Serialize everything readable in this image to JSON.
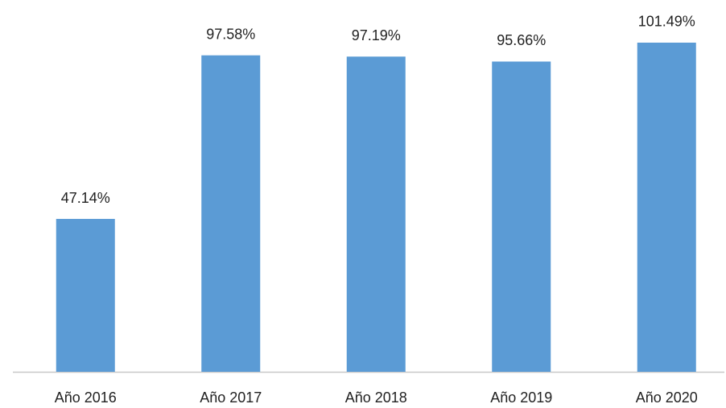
{
  "chart_data": {
    "type": "bar",
    "categories": [
      "Año 2016",
      "Año 2017",
      "Año 2018",
      "Año 2019",
      "Año 2020"
    ],
    "values": [
      47.14,
      97.58,
      97.19,
      95.66,
      101.49
    ],
    "value_labels": [
      "47.14%",
      "97.58%",
      "97.19%",
      "95.66%",
      "101.49%"
    ],
    "color": "#5b9bd5"
  }
}
